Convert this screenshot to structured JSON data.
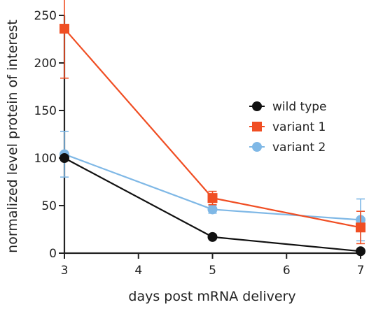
{
  "chart_data": {
    "type": "line",
    "title": "",
    "xlabel": "days post mRNA delivery",
    "ylabel": "normalized level protein of interest",
    "xlim": [
      3,
      7
    ],
    "ylim": [
      0,
      250
    ],
    "xticks": [
      3,
      4,
      5,
      6,
      7
    ],
    "yticks": [
      0,
      50,
      100,
      150,
      200,
      250
    ],
    "grid": false,
    "legend_position": "right",
    "series": [
      {
        "name": "wild type",
        "marker": "circle",
        "color": "#111111",
        "x": [
          3,
          5,
          7
        ],
        "y": [
          100,
          17,
          2
        ],
        "error": [
          0,
          0,
          0
        ]
      },
      {
        "name": "variant 1",
        "marker": "square",
        "color": "#f04e23",
        "x": [
          3,
          5,
          7
        ],
        "y": [
          236,
          58,
          27
        ],
        "error": [
          52,
          7,
          17
        ]
      },
      {
        "name": "variant 2",
        "marker": "circle",
        "color": "#7fb8e6",
        "x": [
          3,
          5,
          7
        ],
        "y": [
          104,
          46,
          35
        ],
        "error": [
          24,
          4,
          22
        ]
      }
    ]
  }
}
